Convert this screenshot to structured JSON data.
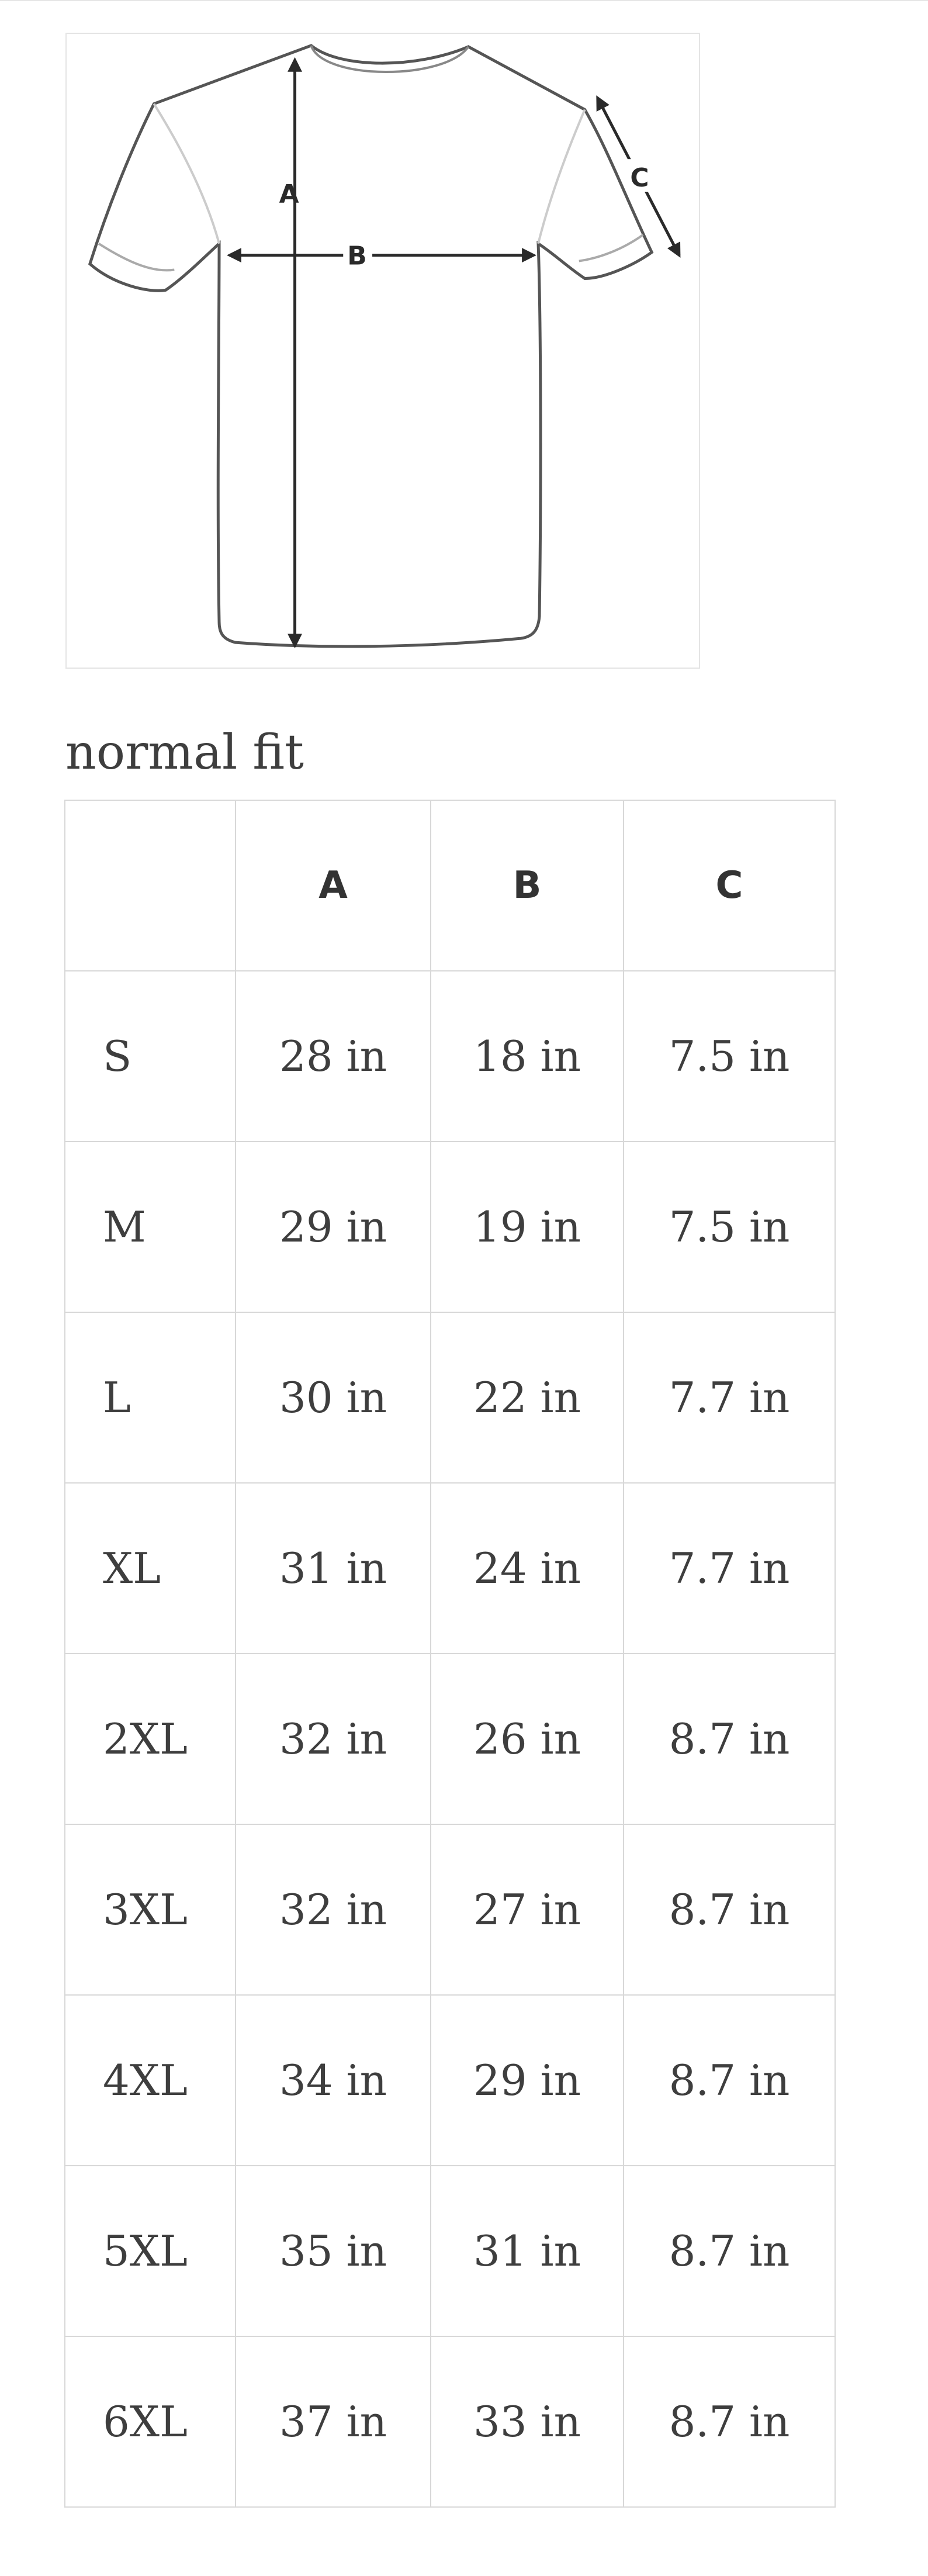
{
  "diagram": {
    "icon": "tshirt-measurement-diagram",
    "labels": {
      "a": "A",
      "b": "B",
      "c": "C"
    }
  },
  "fit_title": "normal fit",
  "table": {
    "headers": [
      "",
      "A",
      "B",
      "C"
    ],
    "rows": [
      {
        "size": "S",
        "a": "28 in",
        "b": "18 in",
        "c": "7.5 in"
      },
      {
        "size": "M",
        "a": "29 in",
        "b": "19 in",
        "c": "7.5 in"
      },
      {
        "size": "L",
        "a": "30 in",
        "b": "22 in",
        "c": "7.7 in"
      },
      {
        "size": "XL",
        "a": "31 in",
        "b": "24 in",
        "c": "7.7 in"
      },
      {
        "size": "2XL",
        "a": "32 in",
        "b": "26 in",
        "c": "8.7 in"
      },
      {
        "size": "3XL",
        "a": "32 in",
        "b": "27 in",
        "c": "8.7 in"
      },
      {
        "size": "4XL",
        "a": "34 in",
        "b": "29 in",
        "c": "8.7 in"
      },
      {
        "size": "5XL",
        "a": "35 in",
        "b": "31 in",
        "c": "8.7 in"
      },
      {
        "size": "6XL",
        "a": "37 in",
        "b": "33 in",
        "c": "8.7 in"
      }
    ]
  }
}
